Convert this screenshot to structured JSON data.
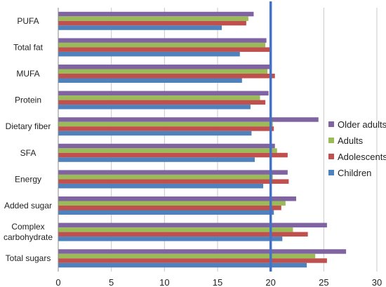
{
  "chart_data": {
    "type": "bar",
    "orientation": "horizontal",
    "categories": [
      "PUFA",
      "Total fat",
      "MUFA",
      "Protein",
      "Dietary fiber",
      "SFA",
      "Energy",
      "Added sugar",
      "Complex\ncarbohydrate",
      "Total sugars"
    ],
    "series": [
      {
        "name": "Older adults",
        "color": "#8064A2",
        "values": [
          18.4,
          19.6,
          20.1,
          19.8,
          24.5,
          20.4,
          21.6,
          22.4,
          25.3,
          27.1
        ]
      },
      {
        "name": "Adults",
        "color": "#9BBB59",
        "values": [
          17.9,
          19.5,
          19.7,
          19.0,
          20.2,
          20.6,
          20.2,
          21.4,
          22.1,
          24.2
        ]
      },
      {
        "name": "Adolescents",
        "color": "#C0504D",
        "values": [
          17.7,
          20.0,
          20.4,
          19.5,
          20.3,
          21.6,
          21.7,
          21.0,
          23.5,
          25.3
        ]
      },
      {
        "name": "Children",
        "color": "#4F81BD",
        "values": [
          15.4,
          17.1,
          17.3,
          18.1,
          18.2,
          18.5,
          19.3,
          20.3,
          21.1,
          23.4
        ]
      }
    ],
    "xlim": [
      0,
      30
    ],
    "xticks": [
      0,
      5,
      10,
      15,
      20,
      25,
      30
    ],
    "reference_line": {
      "x": 20,
      "color": "#4472C4"
    },
    "grid": "vertical",
    "legend": {
      "position": "right",
      "order": [
        "Older adults",
        "Adults",
        "Adolescents",
        "Children"
      ]
    },
    "title": "",
    "xlabel": "",
    "ylabel": ""
  }
}
